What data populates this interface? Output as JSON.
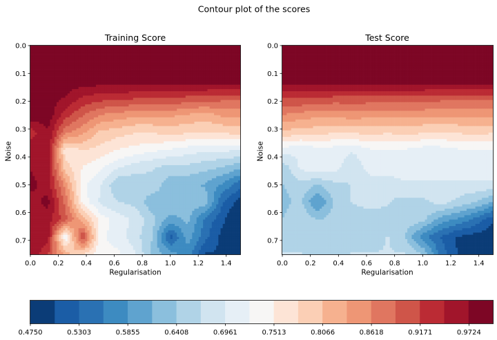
{
  "figure": {
    "suptitle": "Contour plot of the scores"
  },
  "chart_data": [
    {
      "type": "heatmap",
      "title": "Training Score",
      "xlabel": "Regularisation",
      "ylabel": "Noise",
      "xlim": [
        0.0,
        1.5
      ],
      "ylim": [
        0.75,
        0.0
      ],
      "xticks": [
        "0.0",
        "0.2",
        "0.4",
        "0.6",
        "0.8",
        "1.0",
        "1.2",
        "1.4"
      ],
      "yticks": [
        "0.0",
        "0.1",
        "0.2",
        "0.3",
        "0.4",
        "0.5",
        "0.6",
        "0.7"
      ],
      "x": [
        0.0,
        0.125,
        0.25,
        0.375,
        0.5,
        0.625,
        0.75,
        0.875,
        1.0,
        1.125,
        1.25,
        1.375,
        1.5
      ],
      "y": [
        0.0,
        0.0625,
        0.125,
        0.1875,
        0.25,
        0.3125,
        0.375,
        0.4375,
        0.5,
        0.5625,
        0.625,
        0.6875,
        0.75
      ],
      "z": [
        [
          0.99,
          0.99,
          0.99,
          0.99,
          0.99,
          0.99,
          0.99,
          0.99,
          0.99,
          0.99,
          0.99,
          0.99,
          0.99
        ],
        [
          0.99,
          0.99,
          0.99,
          0.99,
          0.99,
          0.99,
          0.99,
          0.99,
          0.99,
          0.99,
          0.99,
          0.99,
          0.99
        ],
        [
          0.99,
          0.99,
          0.99,
          0.99,
          0.99,
          0.99,
          0.99,
          0.99,
          0.99,
          0.99,
          0.99,
          0.99,
          0.99
        ],
        [
          0.99,
          0.99,
          0.97,
          0.94,
          0.93,
          0.93,
          0.92,
          0.92,
          0.92,
          0.91,
          0.91,
          0.9,
          0.9
        ],
        [
          0.99,
          0.99,
          0.93,
          0.89,
          0.86,
          0.85,
          0.84,
          0.84,
          0.84,
          0.83,
          0.82,
          0.84,
          0.84
        ],
        [
          0.93,
          0.97,
          0.87,
          0.84,
          0.8,
          0.79,
          0.78,
          0.78,
          0.79,
          0.78,
          0.78,
          0.78,
          0.79
        ],
        [
          0.97,
          0.97,
          0.76,
          0.78,
          0.77,
          0.75,
          0.74,
          0.73,
          0.72,
          0.71,
          0.7,
          0.7,
          0.7
        ],
        [
          0.97,
          0.96,
          0.79,
          0.75,
          0.73,
          0.7,
          0.68,
          0.67,
          0.66,
          0.66,
          0.65,
          0.64,
          0.62
        ],
        [
          0.98,
          0.96,
          0.85,
          0.73,
          0.7,
          0.64,
          0.65,
          0.66,
          0.62,
          0.62,
          0.61,
          0.58,
          0.54
        ],
        [
          0.96,
          0.98,
          0.88,
          0.74,
          0.69,
          0.67,
          0.66,
          0.62,
          0.64,
          0.63,
          0.63,
          0.53,
          0.49
        ],
        [
          0.96,
          0.96,
          0.9,
          0.82,
          0.74,
          0.71,
          0.69,
          0.65,
          0.6,
          0.62,
          0.55,
          0.51,
          0.46
        ],
        [
          0.97,
          0.96,
          0.72,
          0.92,
          0.73,
          0.71,
          0.68,
          0.64,
          0.52,
          0.6,
          0.54,
          0.49,
          0.47
        ],
        [
          0.97,
          0.92,
          0.82,
          0.78,
          0.73,
          0.73,
          0.7,
          0.63,
          0.6,
          0.57,
          0.5,
          0.5,
          0.47
        ]
      ]
    },
    {
      "type": "heatmap",
      "title": "Test Score",
      "xlabel": "Regularisation",
      "ylabel": "Noise",
      "xlim": [
        0.0,
        1.5
      ],
      "ylim": [
        0.75,
        0.0
      ],
      "xticks": [
        "0.0",
        "0.2",
        "0.4",
        "0.6",
        "0.8",
        "1.0",
        "1.2",
        "1.4"
      ],
      "yticks": [
        "0.0",
        "0.1",
        "0.2",
        "0.3",
        "0.4",
        "0.5",
        "0.6",
        "0.7"
      ],
      "x": [
        0.0,
        0.125,
        0.25,
        0.375,
        0.5,
        0.625,
        0.75,
        0.875,
        1.0,
        1.125,
        1.25,
        1.375,
        1.5
      ],
      "y": [
        0.0,
        0.0625,
        0.125,
        0.1875,
        0.25,
        0.3125,
        0.375,
        0.4375,
        0.5,
        0.5625,
        0.625,
        0.6875,
        0.75
      ],
      "z": [
        [
          0.99,
          0.99,
          0.99,
          0.99,
          0.99,
          0.99,
          0.99,
          0.99,
          0.99,
          0.99,
          0.99,
          0.99,
          0.99
        ],
        [
          0.99,
          0.99,
          0.99,
          0.99,
          0.99,
          0.99,
          0.99,
          0.99,
          0.99,
          0.99,
          0.99,
          0.99,
          0.99
        ],
        [
          0.99,
          0.99,
          0.99,
          0.99,
          0.99,
          0.99,
          0.99,
          0.99,
          0.99,
          0.99,
          0.99,
          0.99,
          0.99
        ],
        [
          0.92,
          0.92,
          0.92,
          0.91,
          0.91,
          0.91,
          0.91,
          0.91,
          0.91,
          0.9,
          0.9,
          0.9,
          0.9
        ],
        [
          0.86,
          0.85,
          0.84,
          0.84,
          0.85,
          0.84,
          0.84,
          0.84,
          0.84,
          0.84,
          0.84,
          0.84,
          0.84
        ],
        [
          0.8,
          0.79,
          0.79,
          0.78,
          0.78,
          0.79,
          0.78,
          0.79,
          0.78,
          0.78,
          0.78,
          0.79,
          0.78
        ],
        [
          0.71,
          0.7,
          0.71,
          0.71,
          0.7,
          0.72,
          0.72,
          0.72,
          0.71,
          0.71,
          0.72,
          0.72,
          0.72
        ],
        [
          0.65,
          0.7,
          0.72,
          0.71,
          0.67,
          0.71,
          0.72,
          0.72,
          0.72,
          0.72,
          0.72,
          0.72,
          0.72
        ],
        [
          0.64,
          0.66,
          0.64,
          0.66,
          0.67,
          0.68,
          0.67,
          0.69,
          0.69,
          0.69,
          0.69,
          0.69,
          0.69
        ],
        [
          0.63,
          0.65,
          0.58,
          0.65,
          0.67,
          0.68,
          0.67,
          0.66,
          0.66,
          0.68,
          0.66,
          0.64,
          0.61
        ],
        [
          0.64,
          0.67,
          0.64,
          0.65,
          0.65,
          0.65,
          0.66,
          0.66,
          0.65,
          0.6,
          0.58,
          0.55,
          0.51
        ],
        [
          0.66,
          0.66,
          0.65,
          0.65,
          0.66,
          0.65,
          0.67,
          0.64,
          0.57,
          0.53,
          0.5,
          0.49,
          0.48
        ],
        [
          0.67,
          0.67,
          0.66,
          0.66,
          0.67,
          0.67,
          0.67,
          0.67,
          0.64,
          0.55,
          0.5,
          0.48,
          0.47
        ]
      ]
    }
  ],
  "colorbar": {
    "vmin": 0.475,
    "vmax": 0.9995,
    "levels": 19,
    "tick_labels": [
      "0.4750",
      "0.5303",
      "0.5855",
      "0.6408",
      "0.6961",
      "0.7513",
      "0.8066",
      "0.8618",
      "0.9171",
      "0.9724"
    ],
    "tick_values": [
      0.475,
      0.5303,
      0.5855,
      0.6408,
      0.6961,
      0.7513,
      0.8066,
      0.8618,
      0.9171,
      0.9724
    ],
    "colors": [
      "#0b3c77",
      "#1b5da6",
      "#2a71b3",
      "#3d8bc1",
      "#5fa3cf",
      "#8bbfdd",
      "#b0d3e7",
      "#d1e4f0",
      "#e6eff6",
      "#f7f6f5",
      "#fde4d6",
      "#fbcfb5",
      "#f6b18f",
      "#ee9675",
      "#e07660",
      "#cf5549",
      "#bb2b34",
      "#a1152b",
      "#7d0625"
    ]
  }
}
